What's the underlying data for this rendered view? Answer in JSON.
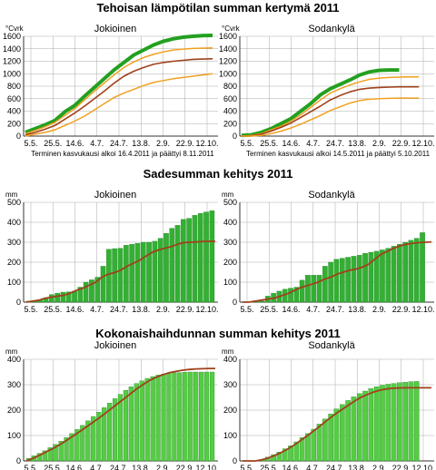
{
  "sections": [
    {
      "title": "Tehoisan lämpötilan summan kertymä 2011",
      "note": "Terminen kasvukausi alkoi 16.4.2011 ja päättyi 8.11.2011",
      "note2": "Terminen kasvukausi alkoi 14.5.2011 ja päättyi 5.10.2011"
    },
    {
      "title": "Sadesumman kehitys 2011"
    },
    {
      "title": "Kokonaishaihdunnan summan kehitys 2011"
    }
  ],
  "colors": {
    "bar": "#33b033",
    "bar_light": "#55cc44",
    "line_brown": "#a0401a",
    "line_orange": "#f0a020",
    "line_green": "#22a020",
    "grid": "#aaaaaa"
  },
  "chart_data": [
    {
      "type": "line",
      "section": 0,
      "title": "Jokioinen",
      "unit": "°Cvrk",
      "x_ticks": [
        "5.5.",
        "25.5.",
        "14.6.",
        "4.7.",
        "24.7.",
        "13.8.",
        "2.9.",
        "22.9.",
        "12.10."
      ],
      "ylim": [
        0,
        1600
      ],
      "y_ticks": [
        0,
        200,
        400,
        600,
        800,
        1000,
        1200,
        1400,
        1600
      ],
      "series": [
        {
          "style": "green-thick",
          "x": [
            0,
            10,
            20,
            30,
            40,
            50,
            60,
            70,
            80,
            90,
            100,
            110,
            120,
            130,
            140,
            150,
            160,
            170,
            180,
            190
          ],
          "y": [
            60,
            120,
            180,
            250,
            390,
            490,
            640,
            780,
            920,
            1060,
            1180,
            1300,
            1380,
            1460,
            1520,
            1560,
            1585,
            1600,
            1610,
            1615
          ]
        },
        {
          "style": "orange",
          "x": [
            0,
            10,
            20,
            30,
            40,
            50,
            60,
            70,
            80,
            90,
            100,
            110,
            120,
            130,
            140,
            150,
            160,
            170,
            180,
            190
          ],
          "y": [
            40,
            90,
            150,
            220,
            330,
            440,
            580,
            720,
            850,
            980,
            1100,
            1190,
            1260,
            1310,
            1350,
            1380,
            1395,
            1405,
            1410,
            1415
          ]
        },
        {
          "style": "brown",
          "x": [
            0,
            10,
            20,
            30,
            40,
            50,
            60,
            70,
            80,
            90,
            100,
            110,
            120,
            130,
            140,
            150,
            160,
            170,
            180,
            190
          ],
          "y": [
            20,
            60,
            110,
            170,
            270,
            370,
            480,
            600,
            720,
            850,
            960,
            1040,
            1100,
            1150,
            1180,
            1200,
            1215,
            1230,
            1235,
            1240
          ]
        },
        {
          "style": "orange",
          "x": [
            0,
            10,
            20,
            30,
            40,
            50,
            60,
            70,
            80,
            90,
            100,
            110,
            120,
            130,
            140,
            150,
            160,
            170,
            180,
            190
          ],
          "y": [
            0,
            30,
            60,
            100,
            170,
            240,
            320,
            420,
            520,
            620,
            690,
            750,
            810,
            860,
            890,
            920,
            940,
            960,
            980,
            1000
          ]
        }
      ]
    },
    {
      "type": "line",
      "section": 0,
      "title": "Sodankylä",
      "unit": "°Cvrk",
      "x_ticks": [
        "5.5.",
        "25.5.",
        "14.6.",
        "4.7.",
        "24.7.",
        "13.8.",
        "2.9.",
        "22.9.",
        "12.10."
      ],
      "ylim": [
        0,
        1600
      ],
      "y_ticks": [
        0,
        200,
        400,
        600,
        800,
        1000,
        1200,
        1400,
        1600
      ],
      "series": [
        {
          "style": "green-thick",
          "x": [
            0,
            10,
            20,
            30,
            40,
            50,
            60,
            70,
            80,
            90,
            100,
            110,
            120,
            130,
            140,
            150,
            160
          ],
          "y": [
            10,
            20,
            60,
            120,
            200,
            280,
            400,
            520,
            660,
            760,
            830,
            900,
            980,
            1030,
            1055,
            1060,
            1060
          ]
        },
        {
          "style": "orange",
          "x": [
            0,
            10,
            20,
            30,
            40,
            50,
            60,
            70,
            80,
            90,
            100,
            110,
            120,
            130,
            140,
            150,
            160,
            170,
            180
          ],
          "y": [
            0,
            10,
            40,
            100,
            160,
            240,
            340,
            460,
            580,
            690,
            760,
            820,
            870,
            910,
            930,
            940,
            945,
            950,
            950
          ]
        },
        {
          "style": "brown",
          "x": [
            0,
            10,
            20,
            30,
            40,
            50,
            60,
            70,
            80,
            90,
            100,
            110,
            120,
            130,
            140,
            150,
            160,
            170,
            180
          ],
          "y": [
            0,
            5,
            30,
            80,
            140,
            210,
            300,
            390,
            480,
            580,
            650,
            710,
            750,
            770,
            780,
            785,
            790,
            790,
            790
          ]
        },
        {
          "style": "orange",
          "x": [
            0,
            10,
            20,
            30,
            40,
            50,
            60,
            70,
            80,
            90,
            100,
            110,
            120,
            130,
            140,
            150,
            160,
            170,
            180
          ],
          "y": [
            0,
            0,
            10,
            40,
            80,
            130,
            190,
            260,
            330,
            410,
            470,
            530,
            570,
            590,
            600,
            605,
            610,
            610,
            610
          ]
        }
      ]
    },
    {
      "type": "bar",
      "section": 1,
      "title": "Jokioinen",
      "unit": "mm",
      "x_ticks": [
        "5.5.",
        "25.5.",
        "14.6.",
        "4.7.",
        "24.7.",
        "13.8.",
        "2.9.",
        "22.9.",
        "12.10."
      ],
      "ylim": [
        0,
        500
      ],
      "y_ticks": [
        0,
        100,
        200,
        300,
        400,
        500
      ],
      "values": [
        5,
        8,
        12,
        22,
        38,
        45,
        50,
        52,
        55,
        75,
        100,
        112,
        125,
        180,
        265,
        268,
        270,
        285,
        290,
        295,
        300,
        300,
        305,
        320,
        345,
        370,
        385,
        415,
        420,
        435,
        445,
        452,
        458
      ],
      "line": [
        0,
        5,
        10,
        20,
        25,
        30,
        35,
        45,
        60,
        70,
        85,
        100,
        125,
        140,
        148,
        160,
        180,
        195,
        210,
        230,
        250,
        262,
        270,
        278,
        290,
        298,
        300,
        302,
        304,
        305,
        305
      ]
    },
    {
      "type": "bar",
      "section": 1,
      "title": "Sodankylä",
      "unit": "mm",
      "x_ticks": [
        "5.5.",
        "25.5.",
        "14.6.",
        "4.7.",
        "24.7.",
        "13.8.",
        "2.9.",
        "22.9.",
        "12.10."
      ],
      "ylim": [
        0,
        500
      ],
      "y_ticks": [
        0,
        100,
        200,
        300,
        400,
        500
      ],
      "values": [
        0,
        0,
        2,
        5,
        30,
        45,
        55,
        65,
        70,
        75,
        110,
        135,
        135,
        135,
        180,
        200,
        215,
        220,
        225,
        230,
        235,
        245,
        250,
        255,
        262,
        270,
        280,
        290,
        300,
        310,
        320,
        348
      ],
      "line": [
        0,
        0,
        5,
        10,
        15,
        20,
        30,
        40,
        55,
        70,
        80,
        90,
        100,
        115,
        125,
        140,
        150,
        160,
        165,
        175,
        190,
        215,
        240,
        255,
        270,
        282,
        290,
        295,
        298,
        300,
        302
      ]
    },
    {
      "type": "bar",
      "section": 2,
      "title": "Jokioinen",
      "unit": "mm",
      "x_ticks": [
        "5.5.",
        "25.5.",
        "14.6.",
        "4.7.",
        "24.7.",
        "13.8.",
        "2.9.",
        "22.9.",
        "12.10."
      ],
      "ylim": [
        0,
        400
      ],
      "y_ticks": [
        0,
        100,
        200,
        300,
        400
      ],
      "values": [
        10,
        20,
        30,
        40,
        52,
        65,
        78,
        92,
        108,
        124,
        140,
        158,
        175,
        192,
        210,
        228,
        245,
        262,
        278,
        292,
        305,
        315,
        325,
        332,
        338,
        342,
        345,
        347,
        348,
        349,
        350,
        350,
        350,
        350,
        350
      ],
      "line": [
        0,
        10,
        22,
        35,
        48,
        62,
        78,
        95,
        112,
        130,
        148,
        166,
        185,
        205,
        225,
        245,
        265,
        285,
        302,
        318,
        330,
        340,
        348,
        353,
        357,
        360,
        362,
        363,
        364,
        364
      ]
    },
    {
      "type": "bar",
      "section": 2,
      "title": "Sodankylä",
      "unit": "mm",
      "x_ticks": [
        "5.5.",
        "25.5.",
        "14.6.",
        "4.7.",
        "24.7.",
        "13.8.",
        "2.9.",
        "22.9.",
        "12.10."
      ],
      "ylim": [
        0,
        400
      ],
      "y_ticks": [
        0,
        100,
        200,
        300,
        400
      ],
      "values": [
        0,
        0,
        0,
        5,
        15,
        25,
        35,
        48,
        60,
        75,
        92,
        108,
        125,
        145,
        165,
        185,
        205,
        222,
        238,
        252,
        265,
        275,
        285,
        292,
        298,
        302,
        305,
        308,
        310,
        312,
        313
      ],
      "line": [
        0,
        0,
        0,
        5,
        12,
        22,
        34,
        48,
        64,
        82,
        100,
        120,
        140,
        160,
        180,
        198,
        215,
        232,
        248,
        260,
        270,
        278,
        283,
        286,
        287,
        288,
        288,
        288,
        288,
        288
      ]
    }
  ]
}
